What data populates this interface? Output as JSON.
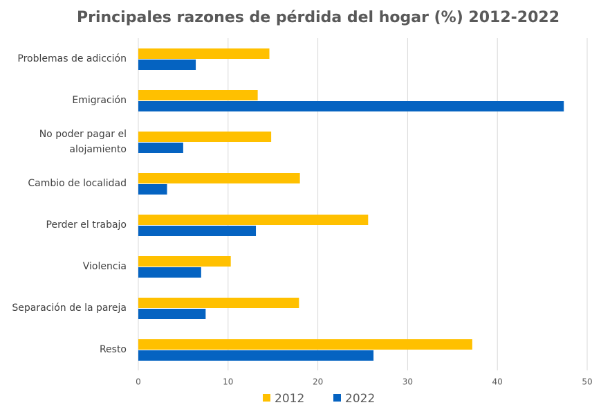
{
  "chart_data": {
    "type": "bar",
    "orientation": "horizontal",
    "title": "Principales razones de pérdida del hogar (%)  2012-2022",
    "categories": [
      "Problemas de adicción",
      "Emigración",
      "No poder pagar el alojamiento",
      "Cambio de localidad",
      "Perder el trabajo",
      "Violencia",
      "Separación de la pareja",
      "Resto"
    ],
    "series": [
      {
        "name": "2012",
        "color": "#ffc000",
        "values": [
          14.6,
          13.3,
          14.8,
          18.0,
          25.6,
          10.3,
          17.9,
          37.2
        ]
      },
      {
        "name": "2022",
        "color": "#0563c1",
        "values": [
          6.4,
          47.4,
          5.0,
          3.2,
          13.1,
          7.0,
          7.5,
          26.2
        ]
      }
    ],
    "xlim": [
      0,
      50
    ],
    "xticks": [
      0,
      10,
      20,
      30,
      40,
      50
    ],
    "grid": true,
    "legend": "bottom"
  }
}
